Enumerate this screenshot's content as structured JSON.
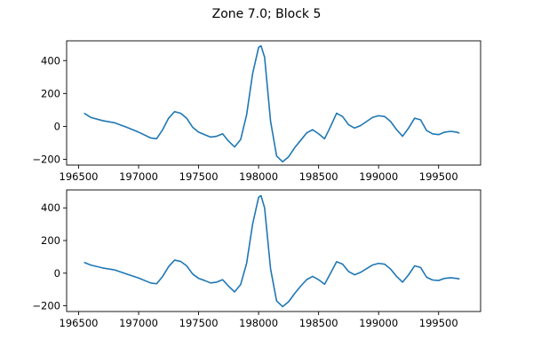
{
  "figure": {
    "title": "Zone 7.0; Block 5"
  },
  "chart_data": [
    {
      "type": "line",
      "title": "",
      "xlabel": "",
      "ylabel": "",
      "xlim": [
        196400,
        199850
      ],
      "ylim": [
        -235,
        520
      ],
      "grid": false,
      "color": "#1f77b4",
      "x_ticks": [
        196500,
        197000,
        197500,
        198000,
        198500,
        199000,
        199500
      ],
      "y_ticks": [
        -200,
        0,
        200,
        400
      ],
      "series": [
        {
          "x": [
            196550,
            196600,
            196700,
            196800,
            196900,
            197000,
            197100,
            197150,
            197200,
            197250,
            197300,
            197350,
            197400,
            197450,
            197500,
            197550,
            197600,
            197650,
            197700,
            197750,
            197800,
            197850,
            197900,
            197950,
            198000,
            198020,
            198050,
            198100,
            198150,
            198200,
            198250,
            198300,
            198350,
            198400,
            198450,
            198500,
            198550,
            198600,
            198650,
            198700,
            198750,
            198800,
            198850,
            198900,
            198950,
            199000,
            199050,
            199100,
            199150,
            199200,
            199250,
            199300,
            199350,
            199400,
            199450,
            199500,
            199550,
            199600,
            199650,
            199670
          ],
          "y": [
            78,
            55,
            35,
            22,
            -5,
            -35,
            -70,
            -75,
            -20,
            50,
            90,
            80,
            50,
            -5,
            -35,
            -50,
            -65,
            -60,
            -45,
            -90,
            -125,
            -80,
            70,
            320,
            480,
            490,
            420,
            30,
            -180,
            -215,
            -185,
            -130,
            -85,
            -40,
            -20,
            -45,
            -75,
            0,
            80,
            60,
            10,
            -10,
            5,
            30,
            55,
            65,
            60,
            30,
            -20,
            -60,
            -10,
            50,
            40,
            -25,
            -45,
            -50,
            -35,
            -30,
            -35,
            -40
          ]
        }
      ]
    },
    {
      "type": "line",
      "title": "",
      "xlabel": "",
      "ylabel": "",
      "xlim": [
        196400,
        199850
      ],
      "ylim": [
        -235,
        510
      ],
      "grid": false,
      "color": "#1f77b4",
      "x_ticks": [
        196500,
        197000,
        197500,
        198000,
        198500,
        199000,
        199500
      ],
      "y_ticks": [
        -200,
        0,
        200,
        400
      ],
      "series": [
        {
          "x": [
            196550,
            196600,
            196700,
            196800,
            196900,
            197000,
            197100,
            197150,
            197200,
            197250,
            197300,
            197350,
            197400,
            197450,
            197500,
            197550,
            197600,
            197650,
            197700,
            197750,
            197800,
            197850,
            197900,
            197950,
            198000,
            198020,
            198050,
            198100,
            198150,
            198200,
            198250,
            198300,
            198350,
            198400,
            198450,
            198500,
            198550,
            198600,
            198650,
            198700,
            198750,
            198800,
            198850,
            198900,
            198950,
            199000,
            199050,
            199100,
            199150,
            199200,
            199250,
            199300,
            199350,
            199400,
            199450,
            199500,
            199550,
            199600,
            199650,
            199670
          ],
          "y": [
            65,
            50,
            32,
            20,
            -5,
            -30,
            -60,
            -65,
            -20,
            40,
            80,
            72,
            45,
            -5,
            -32,
            -45,
            -60,
            -55,
            -40,
            -80,
            -115,
            -70,
            60,
            300,
            465,
            475,
            400,
            25,
            -170,
            -205,
            -175,
            -125,
            -80,
            -40,
            -20,
            -40,
            -68,
            0,
            70,
            55,
            10,
            -10,
            5,
            28,
            50,
            60,
            55,
            25,
            -20,
            -55,
            -10,
            45,
            35,
            -25,
            -42,
            -45,
            -32,
            -28,
            -32,
            -35
          ]
        }
      ]
    }
  ]
}
